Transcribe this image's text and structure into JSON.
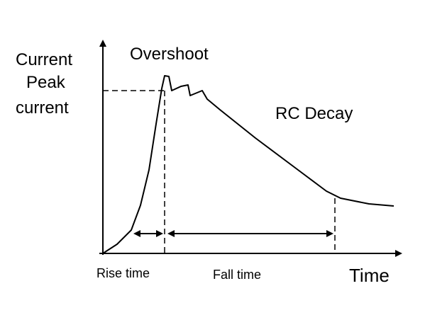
{
  "y_axis_label": "Current",
  "peak_label": [
    "Peak",
    "current"
  ],
  "overshoot_label": "Overshoot",
  "decay_label": "RC Decay",
  "rise_time_label": "Rise time",
  "fall_time_label": "Fall time",
  "x_axis_label": "Time"
}
